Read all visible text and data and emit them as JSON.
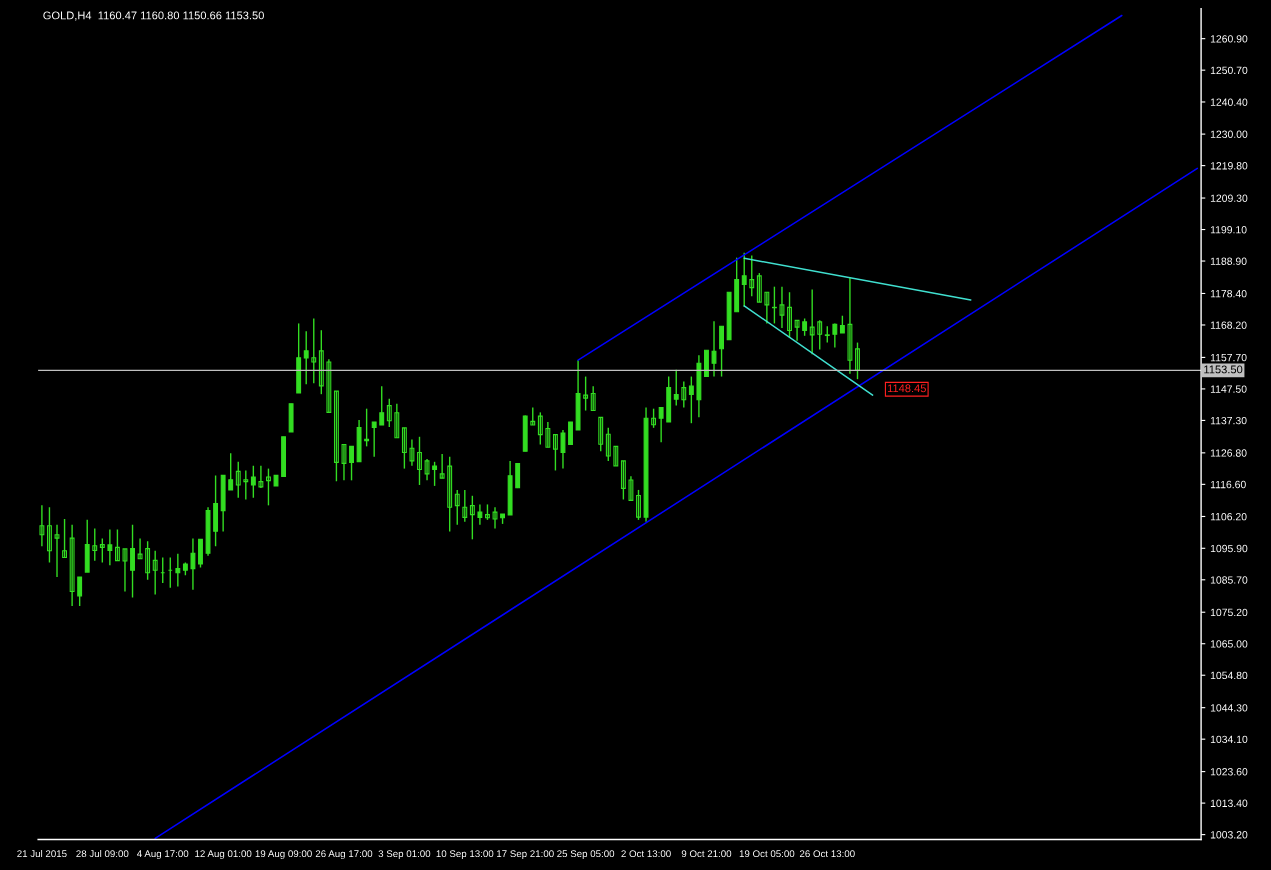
{
  "chart_data": {
    "type": "candlestick",
    "title": "GOLD,H4  1160.47 1160.80 1150.66 1153.50",
    "categories": [
      "21 Jul 2015",
      null,
      null,
      null,
      null,
      null,
      null,
      null,
      "28 Jul 09:00",
      null,
      null,
      null,
      null,
      null,
      null,
      null,
      "4 Aug 17:00",
      null,
      null,
      null,
      null,
      null,
      null,
      null,
      "12 Aug 01:00",
      null,
      null,
      null,
      null,
      null,
      null,
      null,
      "19 Aug 09:00",
      null,
      null,
      null,
      null,
      null,
      null,
      null,
      "26 Aug 17:00",
      null,
      null,
      null,
      null,
      null,
      null,
      null,
      "3 Sep 01:00",
      null,
      null,
      null,
      null,
      null,
      null,
      null,
      "10 Sep 13:00",
      null,
      null,
      null,
      null,
      null,
      null,
      null,
      "17 Sep 21:00",
      null,
      null,
      null,
      null,
      null,
      null,
      null,
      "25 Sep 05:00",
      null,
      null,
      null,
      null,
      null,
      null,
      null,
      "2 Oct 13:00",
      null,
      null,
      null,
      null,
      null,
      null,
      null,
      "9 Oct 21:00",
      null,
      null,
      null,
      null,
      null,
      null,
      null,
      "19 Oct 05:00",
      null,
      null,
      null,
      null,
      null,
      null,
      null,
      "26 Oct 13:00",
      null,
      null,
      null,
      null,
      null,
      null,
      null,
      null,
      null,
      null,
      null,
      null,
      null,
      null,
      null,
      null,
      null,
      null,
      null,
      null,
      null,
      null,
      null,
      null,
      null,
      null,
      null,
      null,
      null,
      null,
      null,
      null,
      null,
      null,
      null,
      null,
      null,
      null,
      null,
      null,
      null,
      null,
      null,
      null,
      null,
      null,
      null,
      null,
      null
    ],
    "color": "#33dd22",
    "ohlc": [
      [
        1103.2,
        1109.8,
        1096.6,
        1100.3
      ],
      [
        1103.2,
        1109.2,
        1091.3,
        1095.1
      ],
      [
        1100.3,
        1103.5,
        1086.6,
        1099.2
      ],
      [
        1095.1,
        1105.4,
        1092.9,
        1092.9
      ],
      [
        1099.2,
        1103.5,
        1077.2,
        1081.9
      ],
      [
        1080.5,
        1086.6,
        1077.2,
        1086.6
      ],
      [
        1088.2,
        1105.1,
        1088.2,
        1097.1
      ],
      [
        1096.7,
        1102.3,
        1091.9,
        1095.2
      ],
      [
        1097.1,
        1099.1,
        1091.3,
        1096.2
      ],
      [
        1095.2,
        1102.0,
        1090.4,
        1097.0
      ],
      [
        1096.2,
        1102.0,
        1091.9,
        1091.9
      ],
      [
        1095.7,
        1095.7,
        1081.9,
        1091.8
      ],
      [
        1088.8,
        1103.5,
        1080.0,
        1095.8
      ],
      [
        1094.0,
        1099.1,
        1092.5,
        1092.5
      ],
      [
        1095.8,
        1098.2,
        1085.7,
        1088.0
      ],
      [
        1092.0,
        1095.1,
        1080.9,
        1088.8
      ],
      [
        1088.0,
        1092.9,
        1084.7,
        1088.0
      ],
      [
        1088.8,
        1092.9,
        1083.1,
        1088.8
      ],
      [
        1088.0,
        1094.1,
        1083.5,
        1089.3
      ],
      [
        1088.8,
        1091.3,
        1087.2,
        1090.8
      ],
      [
        1089.3,
        1099.1,
        1082.5,
        1094.3
      ],
      [
        1090.8,
        1098.8,
        1089.7,
        1098.8
      ],
      [
        1094.3,
        1109.2,
        1093.5,
        1108.1
      ],
      [
        1101.4,
        1119.5,
        1096.6,
        1110.4
      ],
      [
        1108.1,
        1119.5,
        1101.3,
        1119.5
      ],
      [
        1114.8,
        1126.7,
        1114.8,
        1118.1
      ],
      [
        1120.8,
        1123.9,
        1112.3,
        1116.4
      ],
      [
        1118.1,
        1121.1,
        1111.7,
        1117.5
      ],
      [
        1116.4,
        1122.6,
        1112.3,
        1119.0
      ],
      [
        1117.5,
        1122.6,
        1115.4,
        1115.8
      ],
      [
        1119.0,
        1121.7,
        1109.8,
        1117.8
      ],
      [
        1116.1,
        1119.5,
        1116.1,
        1119.5
      ],
      [
        1119.2,
        1132.0,
        1119.2,
        1132.0
      ],
      [
        1133.6,
        1142.7,
        1133.6,
        1142.7
      ],
      [
        1146.2,
        1168.7,
        1146.2,
        1157.6
      ],
      [
        1157.5,
        1166.2,
        1149.0,
        1159.8
      ],
      [
        1157.6,
        1170.3,
        1149.3,
        1156.2
      ],
      [
        1159.8,
        1166.5,
        1145.8,
        1148.5
      ],
      [
        1156.2,
        1157.1,
        1139.9,
        1139.9
      ],
      [
        1146.8,
        1146.8,
        1117.6,
        1123.7
      ],
      [
        1129.5,
        1129.5,
        1117.9,
        1123.4
      ],
      [
        1123.7,
        1128.9,
        1117.9,
        1128.9
      ],
      [
        1123.9,
        1137.4,
        1123.9,
        1135.0
      ],
      [
        1130.7,
        1141.1,
        1128.9,
        1131.2
      ],
      [
        1135.0,
        1136.8,
        1125.5,
        1136.8
      ],
      [
        1135.8,
        1148.4,
        1135.8,
        1139.8
      ],
      [
        1142.1,
        1144.3,
        1135.2,
        1137.2
      ],
      [
        1139.8,
        1142.7,
        1131.7,
        1131.7
      ],
      [
        1134.9,
        1134.9,
        1121.7,
        1126.9
      ],
      [
        1128.3,
        1131.1,
        1122.6,
        1124.2
      ],
      [
        1126.9,
        1132.0,
        1116.4,
        1121.4
      ],
      [
        1124.2,
        1124.8,
        1117.9,
        1120.0
      ],
      [
        1121.4,
        1123.9,
        1116.1,
        1122.5
      ],
      [
        1120.0,
        1126.4,
        1118.6,
        1118.6
      ],
      [
        1122.5,
        1125.5,
        1101.3,
        1109.2
      ],
      [
        1113.4,
        1114.8,
        1103.5,
        1109.7
      ],
      [
        1109.2,
        1114.8,
        1104.5,
        1105.9
      ],
      [
        1109.7,
        1112.9,
        1098.8,
        1106.8
      ],
      [
        1105.9,
        1110.1,
        1103.5,
        1107.6
      ],
      [
        1106.8,
        1110.1,
        1105.1,
        1105.8
      ],
      [
        1107.6,
        1109.2,
        1102.3,
        1105.4
      ],
      [
        1105.8,
        1107.0,
        1103.8,
        1107.0
      ],
      [
        1106.7,
        1124.2,
        1106.7,
        1119.4
      ],
      [
        1115.5,
        1123.3,
        1115.4,
        1123.3
      ],
      [
        1127.3,
        1138.9,
        1127.3,
        1138.7
      ],
      [
        1137.0,
        1141.5,
        1135.8,
        1135.8
      ],
      [
        1138.7,
        1139.9,
        1129.5,
        1132.7
      ],
      [
        1134.7,
        1136.8,
        1128.6,
        1128.6
      ],
      [
        1132.7,
        1132.7,
        1121.1,
        1128.0
      ],
      [
        1126.9,
        1134.2,
        1121.7,
        1133.2
      ],
      [
        1129.5,
        1136.8,
        1129.5,
        1136.8
      ],
      [
        1134.2,
        1156.8,
        1134.2,
        1146.0
      ],
      [
        1145.5,
        1151.5,
        1140.5,
        1144.5
      ],
      [
        1146.0,
        1148.4,
        1140.5,
        1140.5
      ],
      [
        1138.3,
        1138.3,
        1127.3,
        1129.6
      ],
      [
        1132.8,
        1134.9,
        1124.2,
        1125.8
      ],
      [
        1128.9,
        1128.9,
        1122.6,
        1122.6
      ],
      [
        1124.2,
        1124.2,
        1111.7,
        1115.3
      ],
      [
        1118.0,
        1119.2,
        1111.4,
        1111.4
      ],
      [
        1113.0,
        1114.8,
        1105.1,
        1106.0
      ],
      [
        1106.0,
        1141.5,
        1104.5,
        1138.0
      ],
      [
        1138.0,
        1141.1,
        1134.9,
        1135.9
      ],
      [
        1138.0,
        1141.5,
        1130.2,
        1141.5
      ],
      [
        1136.8,
        1151.5,
        1136.8,
        1147.9
      ],
      [
        1144.2,
        1153.7,
        1142.1,
        1145.7
      ],
      [
        1147.9,
        1149.9,
        1141.5,
        1144.0
      ],
      [
        1145.7,
        1151.5,
        1136.4,
        1148.4
      ],
      [
        1144.0,
        1158.4,
        1138.3,
        1155.8
      ],
      [
        1151.5,
        1160.0,
        1151.5,
        1160.0
      ],
      [
        1155.8,
        1169.4,
        1151.5,
        1159.7
      ],
      [
        1160.5,
        1167.8,
        1151.5,
        1167.8
      ],
      [
        1163.4,
        1178.8,
        1163.4,
        1178.8
      ],
      [
        1172.5,
        1190.0,
        1172.5,
        1182.9
      ],
      [
        1181.3,
        1191.6,
        1174.1,
        1184.1
      ],
      [
        1182.9,
        1190.7,
        1177.5,
        1180.3
      ],
      [
        1184.1,
        1185.0,
        1175.6,
        1175.6
      ],
      [
        1178.8,
        1178.8,
        1168.7,
        1174.7
      ],
      [
        1173.8,
        1180.6,
        1168.7,
        1173.9
      ],
      [
        1174.7,
        1180.6,
        1167.2,
        1171.4
      ],
      [
        1173.9,
        1178.8,
        1164.0,
        1166.4
      ],
      [
        1169.7,
        1169.7,
        1163.1,
        1167.5
      ],
      [
        1166.4,
        1170.3,
        1164.7,
        1169.2
      ],
      [
        1167.5,
        1179.7,
        1158.7,
        1165.0
      ],
      [
        1169.2,
        1169.7,
        1160.3,
        1165.2
      ],
      [
        1165.0,
        1167.8,
        1162.5,
        1164.8
      ],
      [
        1165.2,
        1168.7,
        1160.9,
        1168.4
      ],
      [
        1165.6,
        1171.2,
        1165.6,
        1168.0
      ],
      [
        1168.4,
        1183.5,
        1152.4,
        1156.8
      ],
      [
        1160.47,
        1162.5,
        1150.66,
        1153.5
      ],
      null,
      null,
      null,
      null,
      null,
      null,
      null,
      null,
      null,
      null,
      null,
      null,
      null,
      null,
      null,
      null,
      null,
      null,
      null,
      null,
      null,
      null,
      null,
      null,
      null,
      null,
      null,
      null,
      null,
      null,
      null,
      null,
      null,
      null,
      null,
      null,
      null,
      null,
      null,
      null,
      null,
      null,
      null,
      null,
      null
    ],
    "series": [
      {
        "type": "line",
        "color": "#0000ff",
        "values": [
          null,
          null,
          null,
          null,
          null,
          null,
          null,
          null,
          null,
          null,
          null,
          null,
          null,
          null,
          null,
          1002.0,
          null,
          null,
          null,
          null,
          null,
          null,
          null,
          null,
          null,
          null,
          null,
          null,
          null,
          null,
          null,
          null,
          null,
          null,
          null,
          null,
          null,
          null,
          null,
          null,
          null,
          null,
          null,
          null,
          null,
          null,
          null,
          null,
          null,
          null,
          null,
          null,
          null,
          null,
          null,
          null,
          null,
          null,
          null,
          null,
          null,
          null,
          null,
          null,
          null,
          null,
          null,
          null,
          null,
          null,
          null,
          null,
          null,
          null,
          null,
          null,
          null,
          null,
          null,
          null,
          null,
          null,
          null,
          null,
          null,
          null,
          null,
          null,
          null,
          null,
          null,
          null,
          null,
          null,
          null,
          null,
          null,
          null,
          null,
          null,
          null,
          null,
          null,
          null,
          null,
          null,
          null,
          null,
          null,
          null,
          null,
          null,
          null,
          null,
          null,
          null,
          null,
          null,
          null,
          null,
          null,
          null,
          null,
          null,
          null,
          null,
          null,
          null,
          null,
          null,
          null,
          null,
          null,
          null,
          null,
          null,
          null,
          null,
          null,
          null,
          null,
          null,
          null,
          null,
          null,
          null,
          null,
          null,
          null,
          null,
          null,
          null,
          null,
          1218.9
        ]
      },
      {
        "type": "line",
        "color": "#0000ff",
        "values": [
          null,
          null,
          null,
          null,
          null,
          null,
          null,
          null,
          null,
          null,
          null,
          null,
          null,
          null,
          null,
          null,
          null,
          null,
          null,
          null,
          null,
          null,
          null,
          null,
          null,
          null,
          null,
          null,
          null,
          null,
          null,
          null,
          null,
          null,
          null,
          null,
          null,
          null,
          null,
          null,
          null,
          null,
          null,
          null,
          null,
          null,
          null,
          null,
          null,
          null,
          null,
          null,
          null,
          null,
          null,
          null,
          null,
          null,
          null,
          null,
          null,
          null,
          null,
          null,
          null,
          null,
          null,
          null,
          null,
          null,
          null,
          1156.8,
          null,
          null,
          null,
          null,
          null,
          null,
          null,
          null,
          null,
          null,
          null,
          null,
          null,
          null,
          null,
          null,
          null,
          null,
          null,
          null,
          null,
          null,
          null,
          null,
          null,
          null,
          null,
          null,
          null,
          null,
          null,
          null,
          null,
          null,
          null,
          null,
          null,
          null,
          null,
          null,
          null,
          null,
          null,
          null,
          null,
          null,
          null,
          null,
          null,
          null,
          null,
          null,
          null,
          null,
          null,
          null,
          null,
          null,
          null,
          null,
          null,
          null,
          null,
          null,
          null,
          null,
          null,
          null,
          null,
          null,
          null,
          1268.4,
          null,
          null,
          null,
          null,
          null,
          null,
          null,
          null,
          null,
          null
        ]
      },
      {
        "type": "line",
        "color": "#40e0d0",
        "values": [
          null,
          null,
          null,
          null,
          null,
          null,
          null,
          null,
          null,
          null,
          null,
          null,
          null,
          null,
          null,
          null,
          null,
          null,
          null,
          null,
          null,
          null,
          null,
          null,
          null,
          null,
          null,
          null,
          null,
          null,
          null,
          null,
          null,
          null,
          null,
          null,
          null,
          null,
          null,
          null,
          null,
          null,
          null,
          null,
          null,
          null,
          null,
          null,
          null,
          null,
          null,
          null,
          null,
          null,
          null,
          null,
          null,
          null,
          null,
          null,
          null,
          null,
          null,
          null,
          null,
          null,
          null,
          null,
          null,
          null,
          null,
          null,
          null,
          null,
          null,
          null,
          null,
          null,
          null,
          null,
          null,
          null,
          null,
          null,
          null,
          null,
          null,
          null,
          null,
          null,
          null,
          null,
          null,
          1189.8,
          null,
          null,
          null,
          null,
          null,
          null,
          null,
          null,
          null,
          null,
          null,
          null,
          null,
          null,
          null,
          null,
          null,
          null,
          null,
          null,
          null,
          null,
          null,
          null,
          null,
          null,
          null,
          null,
          null,
          1176.3,
          null,
          null,
          null,
          null,
          null,
          null,
          null,
          null,
          null,
          null,
          null,
          null,
          null,
          null,
          null,
          null,
          null,
          null,
          null,
          null,
          null,
          null,
          null,
          null,
          null,
          null,
          null,
          null,
          null,
          null
        ]
      },
      {
        "type": "line",
        "color": "#40e0d0",
        "values": [
          null,
          null,
          null,
          null,
          null,
          null,
          null,
          null,
          null,
          null,
          null,
          null,
          null,
          null,
          null,
          null,
          null,
          null,
          null,
          null,
          null,
          null,
          null,
          null,
          null,
          null,
          null,
          null,
          null,
          null,
          null,
          null,
          null,
          null,
          null,
          null,
          null,
          null,
          null,
          null,
          null,
          null,
          null,
          null,
          null,
          null,
          null,
          null,
          null,
          null,
          null,
          null,
          null,
          null,
          null,
          null,
          null,
          null,
          null,
          null,
          null,
          null,
          null,
          null,
          null,
          null,
          null,
          null,
          null,
          null,
          null,
          null,
          null,
          null,
          null,
          null,
          null,
          null,
          null,
          null,
          null,
          null,
          null,
          null,
          null,
          null,
          null,
          null,
          null,
          null,
          null,
          null,
          null,
          1174.4,
          null,
          null,
          null,
          null,
          null,
          null,
          null,
          null,
          null,
          null,
          null,
          null,
          null,
          null,
          null,
          null,
          1145.5,
          null,
          null,
          null,
          null,
          null,
          null,
          null,
          null,
          null,
          null,
          null,
          null,
          null,
          null,
          null,
          null,
          null,
          null,
          null,
          null,
          null,
          null,
          null,
          null,
          null,
          null,
          null,
          null,
          null,
          null,
          null,
          null,
          null,
          null,
          null,
          null,
          null,
          null,
          null,
          null,
          null,
          null,
          null
        ]
      }
    ],
    "ref_lines": [
      {
        "axis": "y",
        "value": 1153.5,
        "label": "1153.50",
        "color": "#c0c0c0"
      }
    ],
    "annotations": [
      "1148.45"
    ],
    "ylim": [
      1001.6,
      1270.6
    ],
    "yticks": [
      {
        "value": 1260.9,
        "label": "1260.90"
      },
      {
        "value": 1250.7,
        "label": "1250.70"
      },
      {
        "value": 1240.4,
        "label": "1240.40"
      },
      {
        "value": 1230.0,
        "label": "1230.00"
      },
      {
        "value": 1219.8,
        "label": "1219.80"
      },
      {
        "value": 1209.3,
        "label": "1209.30"
      },
      {
        "value": 1199.1,
        "label": "1199.10"
      },
      {
        "value": 1188.9,
        "label": "1188.90"
      },
      {
        "value": 1178.4,
        "label": "1178.40"
      },
      {
        "value": 1168.2,
        "label": "1168.20"
      },
      {
        "value": 1157.7,
        "label": "1157.70"
      },
      {
        "value": 1147.5,
        "label": "1147.50"
      },
      {
        "value": 1137.3,
        "label": "1137.30"
      },
      {
        "value": 1126.8,
        "label": "1126.80"
      },
      {
        "value": 1116.6,
        "label": "1116.60"
      },
      {
        "value": 1106.2,
        "label": "1106.20"
      },
      {
        "value": 1095.9,
        "label": "1095.90"
      },
      {
        "value": 1085.7,
        "label": "1085.70"
      },
      {
        "value": 1075.2,
        "label": "1075.20"
      },
      {
        "value": 1065.0,
        "label": "1065.00"
      },
      {
        "value": 1054.8,
        "label": "1054.80"
      },
      {
        "value": 1044.3,
        "label": "1044.30"
      },
      {
        "value": 1034.1,
        "label": "1034.10"
      },
      {
        "value": 1023.6,
        "label": "1023.60"
      },
      {
        "value": 1013.4,
        "label": "1013.40"
      },
      {
        "value": 1003.2,
        "label": "1003.20"
      }
    ]
  }
}
